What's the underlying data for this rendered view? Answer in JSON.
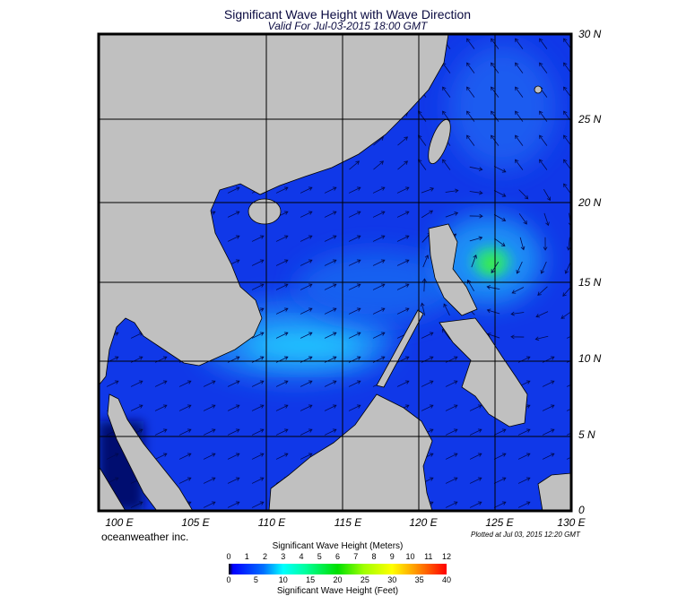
{
  "title": "Significant Wave Height with Wave Direction",
  "subtitle": "Valid For Jul-03-2015 18:00 GMT",
  "lon_labels": [
    "100 E",
    "105 E",
    "110 E",
    "115 E",
    "120 E",
    "125 E",
    "130 E"
  ],
  "lat_labels": [
    "30 N",
    "25 N",
    "20 N",
    "15 N",
    "10 N",
    "5 N",
    "0"
  ],
  "credit": "oceanweather inc.",
  "plotted": "Plotted at Jul 03, 2015 12:20 GMT",
  "colorbar": {
    "meters_title": "Significant Wave Height (Meters)",
    "meters_ticks": [
      "0",
      "1",
      "2",
      "3",
      "4",
      "5",
      "6",
      "7",
      "8",
      "9",
      "10",
      "11",
      "12"
    ],
    "feet_title": "Significant Wave Height (Feet)",
    "feet_ticks": [
      "0",
      "5",
      "10",
      "15",
      "20",
      "25",
      "30",
      "35",
      "40"
    ]
  },
  "colors": {
    "land": "#c0c0c0",
    "sea_base": "#1030e8",
    "moderate": "#20b8ff",
    "peak": "#30e040"
  }
}
